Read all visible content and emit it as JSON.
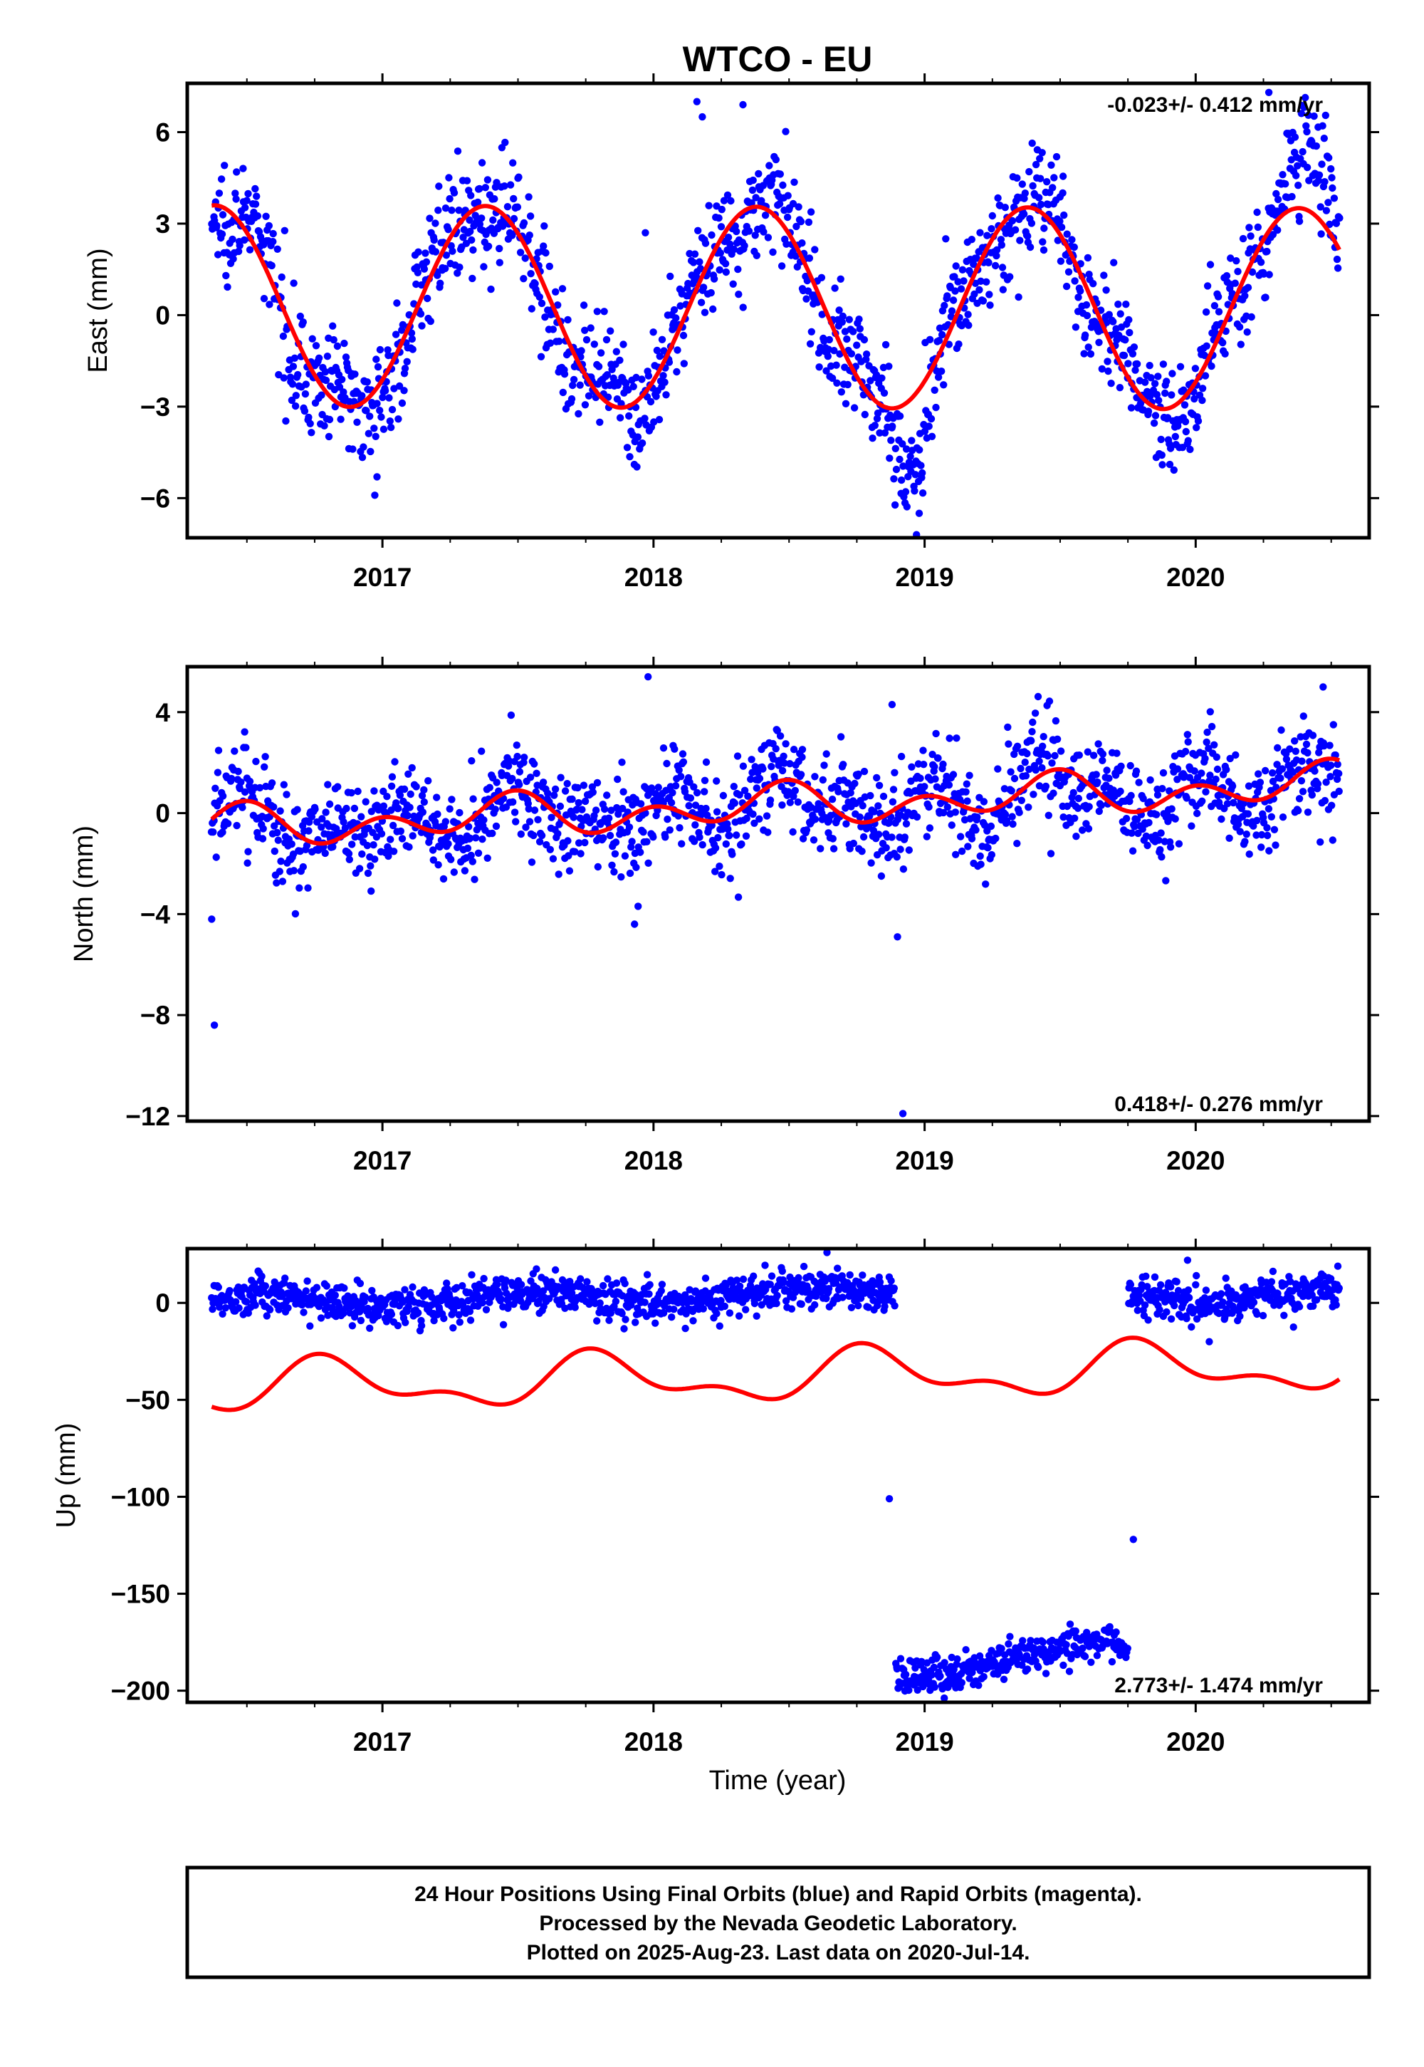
{
  "title": "WTCO - EU",
  "colors": {
    "points": "#0000ff",
    "model": "#ff0000",
    "frame": "#000000",
    "background": "#ffffff"
  },
  "xlabel": "Time (year)",
  "footer": {
    "line1": "24 Hour Positions Using Final Orbits (blue) and Rapid Orbits (magenta).",
    "line2": "Processed by the Nevada Geodetic Laboratory.",
    "line3": "Plotted on 2025-Aug-23. Last data on 2020-Jul-14."
  },
  "chart_data": [
    {
      "type": "scatter",
      "name": "east",
      "ylabel": "East (mm)",
      "rate_text": "-0.023+/- 0.412 mm/yr",
      "rate_position": "top-right",
      "xlim": [
        2016.28,
        2020.64
      ],
      "ylim": [
        -7.3,
        7.6
      ],
      "xticks": [
        2017,
        2018,
        2019,
        2020
      ],
      "xtick_labels": [
        "2017",
        "2018",
        "2019",
        "2020"
      ],
      "yticks": [
        6,
        3,
        0,
        -3,
        -6
      ],
      "ytick_labels": [
        "6",
        "3",
        "0",
        "−3",
        "−6"
      ],
      "data_start": 2016.37,
      "data_end": 2020.53,
      "model": {
        "offset": 0.3,
        "trend": -0.023,
        "annual_amp": 3.3,
        "annual_peak": 2016.38,
        "semiannual_amp": 0.0,
        "semiannual_peak": 2016.2
      },
      "scatter": 0.9,
      "num_points": 1480,
      "outliers": [
        [
          2018.16,
          7.0
        ],
        [
          2018.18,
          6.5
        ],
        [
          2018.33,
          6.9
        ],
        [
          2018.98,
          -6.5
        ],
        [
          2018.97,
          -7.2
        ],
        [
          2016.98,
          -5.3
        ],
        [
          2017.97,
          2.7
        ],
        [
          2020.27,
          7.3
        ]
      ],
      "data_adjustments": [
        {
          "from": 2020.25,
          "to": 2020.6,
          "shift": 1.6
        },
        {
          "from": 2018.85,
          "to": 2019.05,
          "shift": -1.6
        }
      ]
    },
    {
      "type": "scatter",
      "name": "north",
      "ylabel": "North (mm)",
      "rate_text": "0.418+/- 0.276 mm/yr",
      "rate_position": "bottom-right",
      "xlim": [
        2016.28,
        2020.64
      ],
      "ylim": [
        -12.2,
        5.8
      ],
      "xticks": [
        2017,
        2018,
        2019,
        2020
      ],
      "xtick_labels": [
        "2017",
        "2018",
        "2019",
        "2020"
      ],
      "yticks": [
        4,
        0,
        -4,
        -8,
        -12
      ],
      "ytick_labels": [
        "4",
        "0",
        "−4",
        "−8",
        "−12"
      ],
      "data_start": 2016.37,
      "data_end": 2020.53,
      "model": {
        "offset": -0.6,
        "trend": 0.418,
        "annual_amp": 0.45,
        "annual_peak": 2016.45,
        "semiannual_amp": 0.6,
        "semiannual_peak": 2016.5
      },
      "scatter": 1.0,
      "num_points": 1480,
      "outliers": [
        [
          2016.38,
          -8.4
        ],
        [
          2016.37,
          -4.2
        ],
        [
          2018.9,
          -4.9
        ],
        [
          2018.92,
          -11.9
        ],
        [
          2017.98,
          5.4
        ],
        [
          2017.93,
          -4.4
        ],
        [
          2018.88,
          4.3
        ],
        [
          2020.47,
          5.0
        ]
      ],
      "data_adjustments": []
    },
    {
      "type": "scatter",
      "name": "up",
      "ylabel": "Up (mm)",
      "rate_text": "2.773+/- 1.474 mm/yr",
      "rate_position": "bottom-right",
      "xlim": [
        2016.28,
        2020.64
      ],
      "ylim": [
        -206,
        28
      ],
      "xticks": [
        2017,
        2018,
        2019,
        2020
      ],
      "xtick_labels": [
        "2017",
        "2018",
        "2019",
        "2020"
      ],
      "yticks": [
        0,
        -50,
        -100,
        -150,
        -200
      ],
      "ytick_labels": [
        "0",
        "−50",
        "−100",
        "−150",
        "−200"
      ],
      "data_start": 2016.37,
      "data_end": 2020.53,
      "model": {
        "offset": -44,
        "trend": 2.773,
        "annual_amp": 11,
        "annual_peak": 2016.8,
        "semiannual_amp": 6,
        "semiannual_peak": 2016.75
      },
      "scatter": 5.0,
      "num_points": 1450,
      "segments": [
        {
          "from": 2016.37,
          "to": 2018.89,
          "level_start": 0,
          "level_end": 5,
          "scatter": 5
        },
        {
          "from": 2018.87,
          "to": 2019.75,
          "level_start": -192,
          "level_end": -176,
          "scatter": 5
        },
        {
          "from": 2019.75,
          "to": 2020.53,
          "level_start": 4,
          "level_end": 4,
          "scatter": 5
        }
      ],
      "outliers": [
        [
          2018.87,
          -101
        ],
        [
          2019.77,
          -122
        ],
        [
          2020.05,
          -20
        ],
        [
          2018.64,
          26
        ],
        [
          2019.97,
          22
        ]
      ]
    }
  ]
}
